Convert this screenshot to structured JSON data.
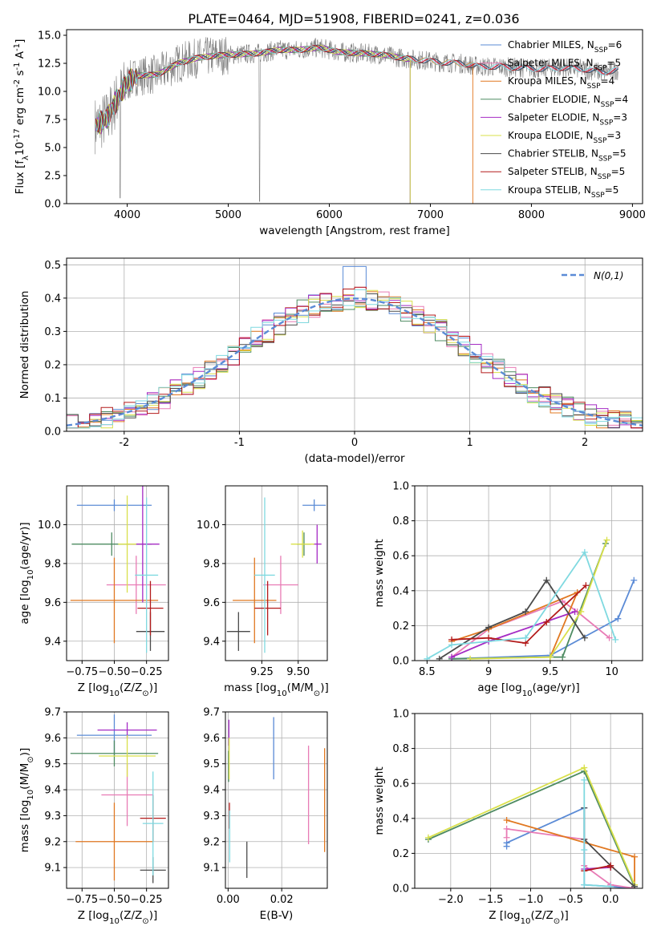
{
  "chart_data": [
    {
      "type": "line",
      "title": "PLATE=0464, MJD=51908, FIBERID=0241, z=0.036",
      "xlabel": "wavelength [Angstrom, rest frame]",
      "ylabel": "Flux [f$_\\lambda$10$^{-17}$ erg cm$^{-2}$ s$^{-1}$ A$^{-1}$]",
      "xlim": [
        3400,
        9100
      ],
      "ylim": [
        0,
        15.5
      ],
      "xticks": [
        4000,
        5000,
        6000,
        7000,
        8000,
        9000
      ],
      "yticks": [
        0.0,
        2.5,
        5.0,
        7.5,
        10.0,
        12.5,
        15.0
      ],
      "legend_loc": "upper right",
      "data_color": "#808080",
      "x": [
        3700,
        3800,
        3900,
        4000,
        4100,
        4300,
        4500,
        4700,
        4900,
        5100,
        5300,
        5500,
        5700,
        5900,
        6100,
        6300,
        6500,
        6700,
        6900,
        7100,
        7300,
        7500,
        7700,
        7900,
        8100,
        8300,
        8500,
        8700,
        8850
      ],
      "model_flux": [
        7.0,
        7.6,
        9.3,
        10.8,
        11.4,
        11.5,
        12.5,
        13.0,
        13.2,
        13.3,
        13.4,
        13.7,
        13.7,
        13.9,
        13.5,
        13.4,
        13.3,
        13.0,
        12.8,
        12.6,
        12.5,
        12.2,
        12.2,
        12.1,
        12.0,
        12.1,
        12.0,
        11.7,
        11.9
      ],
      "series": [
        {
          "name": "Chabrier MILES, N$_{SSP}$=6",
          "color": "#5b8bd6",
          "cut_at": null
        },
        {
          "name": "Salpeter MILES, N$_{SSP}$=5",
          "color": "#e87bb5",
          "cut_at": null
        },
        {
          "name": "Kroupa MILES, N$_{SSP}$=4",
          "color": "#e17821",
          "cut_at": 7420
        },
        {
          "name": "Chabrier ELODIE, N$_{SSP}$=4",
          "color": "#4e8b62",
          "cut_at": 6800
        },
        {
          "name": "Salpeter ELODIE, N$_{SSP}$=3",
          "color": "#a52bc4",
          "cut_at": 6800
        },
        {
          "name": "Kroupa ELODIE, N$_{SSP}$=3",
          "color": "#d9e04a",
          "cut_at": 6800
        },
        {
          "name": "Chabrier STELIB, N$_{SSP}$=5",
          "color": "#4a4a4a",
          "cut_at": null
        },
        {
          "name": "Salpeter STELIB, N$_{SSP}$=5",
          "color": "#b31b1b",
          "cut_at": null
        },
        {
          "name": "Kroupa STELIB, N$_{SSP}$=5",
          "color": "#7fd9e0",
          "cut_at": null
        }
      ]
    },
    {
      "type": "line",
      "xlabel": "(data-model)/error",
      "ylabel": "Normed distribution",
      "xlim": [
        -2.5,
        2.5
      ],
      "ylim": [
        0,
        0.52
      ],
      "xticks": [
        -2,
        -1,
        0,
        1,
        2
      ],
      "yticks": [
        0.0,
        0.1,
        0.2,
        0.3,
        0.4,
        0.5
      ],
      "grid": true,
      "legend": [
        "$\\mathcal{N}(0,1)$"
      ],
      "legend_loc": "upper right",
      "gaussian_color": "#5b8bd6",
      "bin_width": 0.1,
      "hist_colors": [
        "#5b8bd6",
        "#e87bb5",
        "#e17821",
        "#4e8b62",
        "#a52bc4",
        "#d9e04a",
        "#4a4a4a",
        "#b31b1b",
        "#7fd9e0"
      ]
    },
    {
      "type": "scatter",
      "xlabel": "Z [log$_{10}$(Z/Z$_\\odot$)]",
      "ylabel": "age  [log$_{10}$(age/yr)]",
      "xlim": [
        -0.87,
        -0.08
      ],
      "ylim": [
        9.3,
        10.2
      ],
      "xticks": [
        -0.75,
        -0.5,
        -0.25
      ],
      "xticklabels": [
        "−0.75",
        "−0.50",
        "−0.25"
      ],
      "yticks": [
        9.4,
        9.6,
        9.8,
        10.0
      ],
      "grid": true,
      "points": [
        {
          "x": -0.5,
          "y": 10.1,
          "xerr": 0.29,
          "yerr": 0.03,
          "color": "#5b8bd6"
        },
        {
          "x": -0.33,
          "y": 9.69,
          "xerr": 0.23,
          "yerr": 0.15,
          "color": "#e87bb5"
        },
        {
          "x": -0.5,
          "y": 9.61,
          "xerr": 0.34,
          "yerr": 0.22,
          "color": "#e17821"
        },
        {
          "x": -0.52,
          "y": 9.9,
          "xerr": 0.31,
          "yerr": 0.06,
          "color": "#4e8b62"
        },
        {
          "x": -0.28,
          "y": 9.9,
          "xerr": 0.13,
          "yerr": 0.3,
          "color": "#a52bc4"
        },
        {
          "x": -0.4,
          "y": 9.9,
          "xerr": 0.07,
          "yerr": 0.25,
          "color": "#d9e04a"
        },
        {
          "x": -0.22,
          "y": 9.45,
          "xerr": 0.11,
          "yerr": 0.1,
          "color": "#4a4a4a"
        },
        {
          "x": -0.22,
          "y": 9.57,
          "xerr": 0.1,
          "yerr": 0.14,
          "color": "#b31b1b"
        },
        {
          "x": -0.25,
          "y": 9.74,
          "xerr": 0.09,
          "yerr": 0.4,
          "color": "#7fd9e0"
        }
      ]
    },
    {
      "type": "scatter",
      "xlabel": "mass [log$_{10}$(M/M$_\\odot$)]",
      "ylabel": "",
      "xlim": [
        9.0,
        9.7
      ],
      "ylim": [
        9.3,
        10.2
      ],
      "xticks": [
        9.25,
        9.5
      ],
      "xticklabels": [
        "9.25",
        "9.50"
      ],
      "yticks": [
        9.4,
        9.6,
        9.8,
        10.0
      ],
      "grid": true,
      "points": [
        {
          "x": 9.61,
          "y": 10.1,
          "xerr": 0.08,
          "yerr": 0.03,
          "color": "#5b8bd6"
        },
        {
          "x": 9.38,
          "y": 9.69,
          "xerr": 0.12,
          "yerr": 0.15,
          "color": "#e87bb5"
        },
        {
          "x": 9.2,
          "y": 9.61,
          "xerr": 0.15,
          "yerr": 0.22,
          "color": "#e17821"
        },
        {
          "x": 9.54,
          "y": 9.9,
          "xerr": 0.05,
          "yerr": 0.06,
          "color": "#4e8b62"
        },
        {
          "x": 9.63,
          "y": 9.9,
          "xerr": 0.03,
          "yerr": 0.1,
          "color": "#a52bc4"
        },
        {
          "x": 9.53,
          "y": 9.9,
          "xerr": 0.08,
          "yerr": 0.07,
          "color": "#d9e04a"
        },
        {
          "x": 9.09,
          "y": 9.45,
          "xerr": 0.08,
          "yerr": 0.1,
          "color": "#4a4a4a"
        },
        {
          "x": 9.29,
          "y": 9.57,
          "xerr": 0.09,
          "yerr": 0.14,
          "color": "#b31b1b"
        },
        {
          "x": 9.27,
          "y": 9.74,
          "xerr": 0.07,
          "yerr": 0.4,
          "color": "#7fd9e0"
        }
      ]
    },
    {
      "type": "line",
      "xlabel": "age  [log$_{10}$(age/yr)]",
      "ylabel": "mass weight",
      "xlim": [
        8.4,
        10.25
      ],
      "ylim": [
        0,
        1.0
      ],
      "xticks": [
        8.5,
        9.0,
        9.5,
        10.0
      ],
      "yticks": [
        0.0,
        0.2,
        0.4,
        0.6,
        0.8,
        1.0
      ],
      "grid": true,
      "series": [
        {
          "color": "#5b8bd6",
          "x": [
            8.7,
            9.5,
            10.05,
            10.18
          ],
          "y": [
            0.01,
            0.03,
            0.24,
            0.46
          ]
        },
        {
          "color": "#e87bb5",
          "x": [
            8.7,
            9.0,
            9.6,
            9.72,
            9.98
          ],
          "y": [
            0.02,
            0.18,
            0.34,
            0.28,
            0.13
          ]
        },
        {
          "color": "#e17821",
          "x": [
            8.7,
            9.0,
            9.72,
            9.5
          ],
          "y": [
            0.11,
            0.18,
            0.39,
            0.02
          ]
        },
        {
          "color": "#4e8b62",
          "x": [
            8.7,
            9.5,
            9.6,
            9.95
          ],
          "y": [
            0.01,
            0.02,
            0.02,
            0.67
          ]
        },
        {
          "color": "#a52bc4",
          "x": [
            8.7,
            9.0,
            9.7
          ],
          "y": [
            0.02,
            0.11,
            0.28
          ]
        },
        {
          "color": "#d9e04a",
          "x": [
            8.85,
            9.5,
            9.75,
            9.96
          ],
          "y": [
            0.01,
            0.02,
            0.28,
            0.69
          ]
        },
        {
          "color": "#4a4a4a",
          "x": [
            8.6,
            9.0,
            9.3,
            9.47,
            9.78
          ],
          "y": [
            0.01,
            0.19,
            0.28,
            0.46,
            0.13
          ]
        },
        {
          "color": "#b31b1b",
          "x": [
            8.7,
            9.0,
            9.3,
            9.47,
            9.79
          ],
          "y": [
            0.12,
            0.13,
            0.1,
            0.22,
            0.43
          ]
        },
        {
          "color": "#7fd9e0",
          "x": [
            8.5,
            8.7,
            9.3,
            9.78,
            10.03
          ],
          "y": [
            0.01,
            0.09,
            0.13,
            0.62,
            0.12
          ]
        }
      ]
    },
    {
      "type": "scatter",
      "xlabel": "Z [log$_{10}$(Z/Z$_\\odot$)]",
      "ylabel": "mass [log$_{10}$(M/M$_\\odot$)]",
      "xlim": [
        -0.87,
        -0.08
      ],
      "ylim": [
        9.02,
        9.7
      ],
      "xticks": [
        -0.75,
        -0.5,
        -0.25
      ],
      "xticklabels": [
        "−0.75",
        "−0.50",
        "−0.25"
      ],
      "yticks": [
        9.1,
        9.2,
        9.3,
        9.4,
        9.5,
        9.6,
        9.7
      ],
      "grid": true,
      "points": [
        {
          "x": -0.5,
          "y": 9.61,
          "xerr": 0.29,
          "yerr": 0.08,
          "color": "#5b8bd6"
        },
        {
          "x": -0.4,
          "y": 9.38,
          "xerr": 0.2,
          "yerr": 0.12,
          "color": "#e87bb5"
        },
        {
          "x": -0.5,
          "y": 9.2,
          "xerr": 0.3,
          "yerr": 0.15,
          "color": "#e17821"
        },
        {
          "x": -0.5,
          "y": 9.54,
          "xerr": 0.34,
          "yerr": 0.05,
          "color": "#4e8b62"
        },
        {
          "x": -0.4,
          "y": 9.63,
          "xerr": 0.23,
          "yerr": 0.03,
          "color": "#a52bc4"
        },
        {
          "x": -0.4,
          "y": 9.53,
          "xerr": 0.22,
          "yerr": 0.08,
          "color": "#d9e04a"
        },
        {
          "x": -0.2,
          "y": 9.09,
          "xerr": 0.1,
          "yerr": 0.05,
          "color": "#4a4a4a"
        },
        {
          "x": -0.2,
          "y": 9.29,
          "xerr": 0.1,
          "yerr": 0.09,
          "color": "#b31b1b"
        },
        {
          "x": -0.2,
          "y": 9.27,
          "xerr": 0.08,
          "yerr": 0.2,
          "color": "#7fd9e0"
        }
      ]
    },
    {
      "type": "scatter",
      "xlabel": "E(B-V)",
      "ylabel": "",
      "xlim": [
        -0.001,
        0.037
      ],
      "ylim": [
        9.02,
        9.7
      ],
      "xticks": [
        0.0,
        0.02
      ],
      "xticklabels": [
        "0.00",
        "0.02"
      ],
      "yticks": [
        9.1,
        9.2,
        9.3,
        9.4,
        9.5,
        9.6,
        9.7
      ],
      "grid": true,
      "points": [
        {
          "x": 0.017,
          "y": 9.56,
          "yerr": 0.12,
          "color": "#5b8bd6"
        },
        {
          "x": 0.03,
          "y": 9.38,
          "yerr": 0.19,
          "color": "#e87bb5"
        },
        {
          "x": 0.036,
          "y": 9.36,
          "yerr": 0.2,
          "color": "#e17821"
        },
        {
          "x": 0.0002,
          "y": 9.49,
          "yerr": 0.06,
          "color": "#4e8b62"
        },
        {
          "x": 0.0003,
          "y": 9.62,
          "yerr": 0.05,
          "color": "#a52bc4"
        },
        {
          "x": 0.0004,
          "y": 9.52,
          "yerr": 0.08,
          "color": "#d9e04a"
        },
        {
          "x": 0.007,
          "y": 9.13,
          "yerr": 0.07,
          "color": "#4a4a4a"
        },
        {
          "x": 0.0005,
          "y": 9.3,
          "yerr": 0.05,
          "color": "#b31b1b"
        },
        {
          "x": 0.0006,
          "y": 9.22,
          "yerr": 0.1,
          "color": "#7fd9e0"
        }
      ]
    },
    {
      "type": "line",
      "xlabel": "Z [log$_{10}$(Z/Z$_\\odot$)]",
      "ylabel": "mass weight",
      "xlim": [
        -2.45,
        0.4
      ],
      "ylim": [
        0,
        1.0
      ],
      "xticks": [
        -2.0,
        -1.5,
        -1.0,
        -0.5,
        0.0
      ],
      "xticklabels": [
        "−2.0",
        "−1.5",
        "−1.0",
        "−0.5",
        "0.0"
      ],
      "yticks": [
        0.0,
        0.2,
        0.4,
        0.6,
        0.8,
        1.0
      ],
      "grid": true,
      "series": [
        {
          "color": "#5b8bd6",
          "x": [
            -1.3,
            -1.3,
            -0.33,
            -0.33,
            0.0,
            0.3
          ],
          "y": [
            0.24,
            0.26,
            0.46,
            0.02,
            0.01,
            0.0
          ]
        },
        {
          "color": "#e87bb5",
          "x": [
            -1.3,
            -1.3,
            -0.33,
            -0.33,
            0.0,
            0.3
          ],
          "y": [
            0.29,
            0.34,
            0.28,
            0.13,
            0.02,
            0.0
          ]
        },
        {
          "color": "#e17821",
          "x": [
            -1.3,
            0.3,
            0.3
          ],
          "y": [
            0.39,
            0.18,
            0.02
          ]
        },
        {
          "color": "#4e8b62",
          "x": [
            -2.28,
            -0.33,
            0.3
          ],
          "y": [
            0.28,
            0.67,
            0.01
          ]
        },
        {
          "color": "#a52bc4",
          "x": [
            -0.33,
            0.0
          ],
          "y": [
            0.11,
            0.12
          ]
        },
        {
          "color": "#d9e04a",
          "x": [
            -2.28,
            -0.33,
            0.3
          ],
          "y": [
            0.29,
            0.69,
            0.02
          ]
        },
        {
          "color": "#4a4a4a",
          "x": [
            -0.33,
            -0.33,
            0.0,
            0.3
          ],
          "y": [
            0.46,
            0.28,
            0.13,
            0.01
          ]
        },
        {
          "color": "#b31b1b",
          "x": [
            -0.33,
            0.0,
            0.0
          ],
          "y": [
            0.1,
            0.13,
            0.12
          ]
        },
        {
          "color": "#7fd9e0",
          "x": [
            -0.33,
            -0.33,
            -0.33,
            0.0
          ],
          "y": [
            0.62,
            0.22,
            0.02,
            0.01
          ]
        }
      ]
    }
  ]
}
